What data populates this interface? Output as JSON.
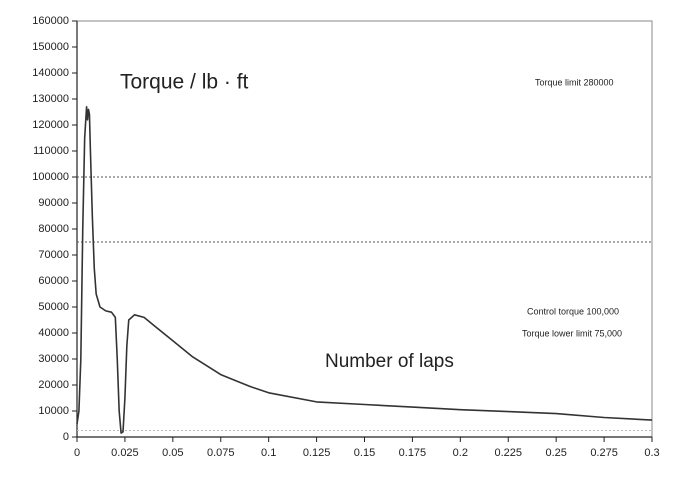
{
  "chart_data": {
    "type": "line",
    "title": "Torque / lb · ft",
    "xlabel": "Number of laps",
    "annotations": [
      "Torque limit 280000",
      "Control torque 100,000",
      "Torque lower limit 75,000"
    ],
    "x": [
      0,
      0.001,
      0.002,
      0.003,
      0.004,
      0.005,
      0.0055,
      0.006,
      0.0065,
      0.007,
      0.008,
      0.009,
      0.01,
      0.012,
      0.015,
      0.018,
      0.02,
      0.021,
      0.022,
      0.023,
      0.024,
      0.025,
      0.026,
      0.027,
      0.03,
      0.035,
      0.04,
      0.05,
      0.06,
      0.075,
      0.09,
      0.1,
      0.125,
      0.15,
      0.175,
      0.2,
      0.225,
      0.25,
      0.275,
      0.3
    ],
    "series": [
      {
        "name": "Torque",
        "color": "#333333",
        "values": [
          5000,
          10000,
          30000,
          80000,
          115000,
          127000,
          122000,
          126000,
          124000,
          110000,
          85000,
          65000,
          55000,
          50000,
          48500,
          48000,
          46000,
          30000,
          10000,
          1500,
          2000,
          15000,
          35000,
          45000,
          47000,
          46000,
          43000,
          37000,
          31000,
          24000,
          19500,
          17000,
          13500,
          12500,
          11500,
          10500,
          9800,
          9000,
          7500,
          6500
        ]
      }
    ],
    "hlines": [
      100000,
      75000,
      2500
    ],
    "xlim": [
      0,
      0.3
    ],
    "xticks": [
      0,
      0.025,
      0.05,
      0.075,
      0.1,
      0.125,
      0.15,
      0.175,
      0.2,
      0.225,
      0.25,
      0.275,
      0.3
    ],
    "ylim": [
      0,
      160000
    ],
    "yticks": [
      0,
      10000,
      20000,
      30000,
      40000,
      50000,
      60000,
      70000,
      80000,
      90000,
      100000,
      110000,
      120000,
      130000,
      140000,
      150000,
      160000
    ],
    "grid": false
  }
}
